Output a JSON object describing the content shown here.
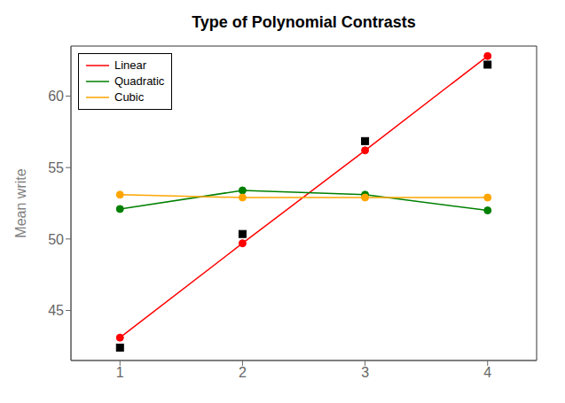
{
  "chart_data": {
    "type": "line",
    "title": "Type of Polynomial Contrasts",
    "ylabel": "Mean write",
    "x": [
      1,
      2,
      3,
      4
    ],
    "xlim": [
      0.6,
      4.4
    ],
    "ylim": [
      41.5,
      63.5
    ],
    "xticks": [
      1,
      2,
      3,
      4
    ],
    "yticks": [
      45,
      50,
      55,
      60
    ],
    "grid": false,
    "legend": "upper left",
    "series": [
      {
        "color": "#000000",
        "marker": "square",
        "line_style": "none",
        "values": [
          42.4,
          50.35,
          56.85,
          62.2
        ]
      },
      {
        "name": "Linear",
        "color": "#FF0000",
        "marker": "circle",
        "line_style": "solid",
        "values": [
          43.1,
          49.7,
          56.2,
          62.8
        ]
      },
      {
        "name": "Quadratic",
        "color": "#008000",
        "marker": "circle",
        "line_style": "solid",
        "values": [
          52.1,
          53.4,
          53.1,
          52.0
        ]
      },
      {
        "name": "Cubic",
        "color": "#FFA500",
        "marker": "circle",
        "line_style": "solid",
        "values": [
          53.1,
          52.9,
          52.9,
          52.9
        ]
      }
    ]
  }
}
